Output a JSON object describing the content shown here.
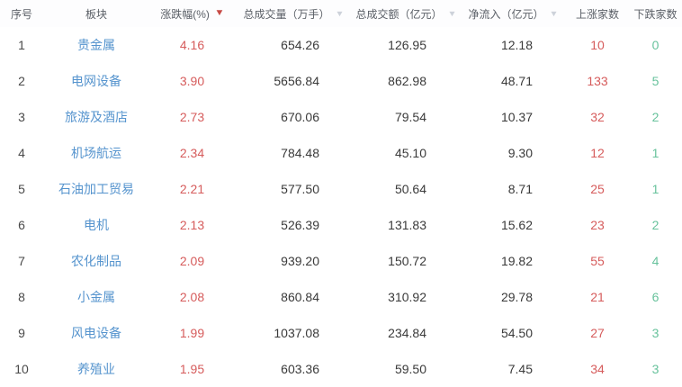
{
  "colors": {
    "sector_link": "#5694ce",
    "positive_red": "#d65c5c",
    "down_green": "#67c29c",
    "header_text": "#5a5f66",
    "body_text": "#3a3a3a",
    "sort_active": "#c74a45",
    "sort_inactive": "#cdd2da",
    "background": "#ffffff"
  },
  "icons": {
    "sort_desc_active": "▼",
    "sort_inactive": "▼"
  },
  "table": {
    "columns": [
      {
        "key": "index",
        "label": "序号",
        "sort": "none"
      },
      {
        "key": "sector",
        "label": "板块",
        "sort": "none"
      },
      {
        "key": "change_pct",
        "label": "涨跌幅(%)",
        "sort": "active_desc"
      },
      {
        "key": "volume",
        "label": "总成交量（万手）",
        "sort": "inactive"
      },
      {
        "key": "turnover",
        "label": "总成交额（亿元）",
        "sort": "inactive"
      },
      {
        "key": "net_inflow",
        "label": "净流入（亿元）",
        "sort": "inactive"
      },
      {
        "key": "up_count",
        "label": "上涨家数",
        "sort": "none"
      },
      {
        "key": "down_count",
        "label": "下跌家数",
        "sort": "none"
      }
    ],
    "rows": [
      {
        "index": "1",
        "sector": "贵金属",
        "change_pct": "4.16",
        "volume": "654.26",
        "turnover": "126.95",
        "net_inflow": "12.18",
        "up_count": "10",
        "down_count": "0"
      },
      {
        "index": "2",
        "sector": "电网设备",
        "change_pct": "3.90",
        "volume": "5656.84",
        "turnover": "862.98",
        "net_inflow": "48.71",
        "up_count": "133",
        "down_count": "5"
      },
      {
        "index": "3",
        "sector": "旅游及酒店",
        "change_pct": "2.73",
        "volume": "670.06",
        "turnover": "79.54",
        "net_inflow": "10.37",
        "up_count": "32",
        "down_count": "2"
      },
      {
        "index": "4",
        "sector": "机场航运",
        "change_pct": "2.34",
        "volume": "784.48",
        "turnover": "45.10",
        "net_inflow": "9.30",
        "up_count": "12",
        "down_count": "1"
      },
      {
        "index": "5",
        "sector": "石油加工贸易",
        "change_pct": "2.21",
        "volume": "577.50",
        "turnover": "50.64",
        "net_inflow": "8.71",
        "up_count": "25",
        "down_count": "1"
      },
      {
        "index": "6",
        "sector": "电机",
        "change_pct": "2.13",
        "volume": "526.39",
        "turnover": "131.83",
        "net_inflow": "15.62",
        "up_count": "23",
        "down_count": "2"
      },
      {
        "index": "7",
        "sector": "农化制品",
        "change_pct": "2.09",
        "volume": "939.20",
        "turnover": "150.72",
        "net_inflow": "19.82",
        "up_count": "55",
        "down_count": "4"
      },
      {
        "index": "8",
        "sector": "小金属",
        "change_pct": "2.08",
        "volume": "860.84",
        "turnover": "310.92",
        "net_inflow": "29.78",
        "up_count": "21",
        "down_count": "6"
      },
      {
        "index": "9",
        "sector": "风电设备",
        "change_pct": "1.99",
        "volume": "1037.08",
        "turnover": "234.84",
        "net_inflow": "54.50",
        "up_count": "27",
        "down_count": "3"
      },
      {
        "index": "10",
        "sector": "养殖业",
        "change_pct": "1.95",
        "volume": "603.36",
        "turnover": "59.50",
        "net_inflow": "7.45",
        "up_count": "34",
        "down_count": "3"
      }
    ]
  }
}
